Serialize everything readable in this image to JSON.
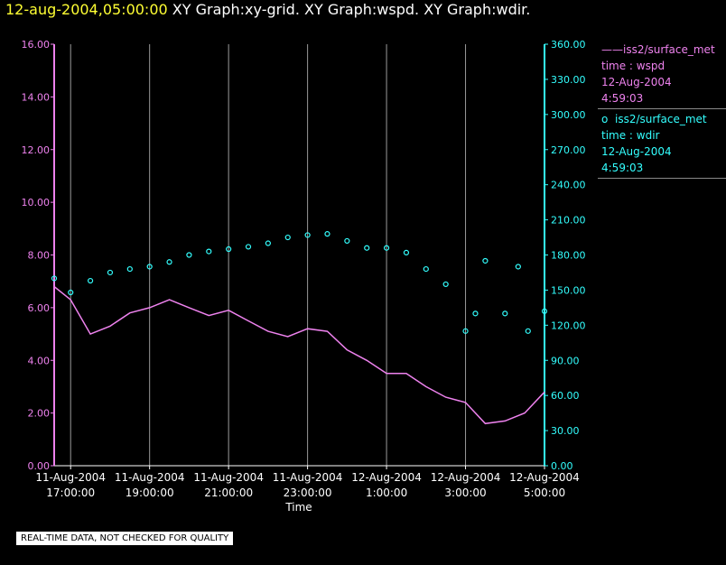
{
  "header": {
    "date": "12-aug-2004,05:00:00",
    "titles": "XY Graph:xy-grid.  XY Graph:wspd.  XY Graph:wdir."
  },
  "legend": [
    {
      "marker": "——",
      "series": "iss2/surface_met",
      "line1": "time : wspd",
      "line2": "12-Aug-2004",
      "line3": "4:59:03",
      "color": "#ee82ee"
    },
    {
      "marker": "o",
      "series": "iss2/surface_met",
      "line1": "time : wdir",
      "line2": "12-Aug-2004",
      "line3": "4:59:03",
      "color": "#33ffff"
    }
  ],
  "footer": {
    "quality_note": "REAL-TIME DATA, NOT CHECKED FOR QUALITY"
  },
  "chart_data": {
    "type": "line",
    "title": "",
    "xlabel": "Time",
    "x_range": [
      "11-Aug-2004 16:35",
      "12-Aug-2004 05:00"
    ],
    "x_ticks": [
      {
        "t": "11-Aug-2004 17:00",
        "l1": "11-Aug-2004",
        "l2": "17:00:00"
      },
      {
        "t": "11-Aug-2004 19:00",
        "l1": "11-Aug-2004",
        "l2": "19:00:00"
      },
      {
        "t": "11-Aug-2004 21:00",
        "l1": "11-Aug-2004",
        "l2": "21:00:00"
      },
      {
        "t": "11-Aug-2004 23:00",
        "l1": "11-Aug-2004",
        "l2": "23:00:00"
      },
      {
        "t": "12-Aug-2004 01:00",
        "l1": "12-Aug-2004",
        "l2": "1:00:00"
      },
      {
        "t": "12-Aug-2004 03:00",
        "l1": "12-Aug-2004",
        "l2": "3:00:00"
      },
      {
        "t": "12-Aug-2004 05:00",
        "l1": "12-Aug-2004",
        "l2": "5:00:00"
      }
    ],
    "y_left": {
      "range": [
        0,
        16
      ],
      "ticks": [
        "0.00",
        "2.00",
        "4.00",
        "6.00",
        "8.00",
        "10.00",
        "12.00",
        "14.00",
        "16.00"
      ],
      "color": "#ee82ee"
    },
    "y_right": {
      "range": [
        0,
        360
      ],
      "ticks": [
        "0.00",
        "30.00",
        "60.00",
        "90.00",
        "120.00",
        "150.00",
        "180.00",
        "210.00",
        "240.00",
        "270.00",
        "300.00",
        "330.00",
        "360.00"
      ],
      "color": "#33ffff"
    },
    "grid": "vertical lines at x ticks",
    "series": [
      {
        "name": "iss2/surface_met time : wspd",
        "axis": "left",
        "style": "line",
        "color": "#ee82ee",
        "points": [
          [
            "11-Aug-2004 16:35",
            6.8
          ],
          [
            "11-Aug-2004 17:00",
            6.3
          ],
          [
            "11-Aug-2004 17:30",
            5.0
          ],
          [
            "11-Aug-2004 18:00",
            5.3
          ],
          [
            "11-Aug-2004 18:30",
            5.8
          ],
          [
            "11-Aug-2004 19:00",
            6.0
          ],
          [
            "11-Aug-2004 19:30",
            6.3
          ],
          [
            "11-Aug-2004 20:00",
            6.0
          ],
          [
            "11-Aug-2004 20:30",
            5.7
          ],
          [
            "11-Aug-2004 21:00",
            5.9
          ],
          [
            "11-Aug-2004 21:30",
            5.5
          ],
          [
            "11-Aug-2004 22:00",
            5.1
          ],
          [
            "11-Aug-2004 22:30",
            4.9
          ],
          [
            "11-Aug-2004 23:00",
            5.2
          ],
          [
            "11-Aug-2004 23:30",
            5.1
          ],
          [
            "12-Aug-2004 00:00",
            4.4
          ],
          [
            "12-Aug-2004 00:30",
            4.0
          ],
          [
            "12-Aug-2004 01:00",
            3.5
          ],
          [
            "12-Aug-2004 01:30",
            3.5
          ],
          [
            "12-Aug-2004 02:00",
            3.0
          ],
          [
            "12-Aug-2004 02:30",
            2.6
          ],
          [
            "12-Aug-2004 03:00",
            2.4
          ],
          [
            "12-Aug-2004 03:30",
            1.6
          ],
          [
            "12-Aug-2004 04:00",
            1.7
          ],
          [
            "12-Aug-2004 04:30",
            2.0
          ],
          [
            "12-Aug-2004 05:00",
            2.8
          ]
        ]
      },
      {
        "name": "iss2/surface_met time : wdir",
        "axis": "right",
        "style": "scatter",
        "color": "#33ffff",
        "points": [
          [
            "11-Aug-2004 16:35",
            160
          ],
          [
            "11-Aug-2004 17:00",
            148
          ],
          [
            "11-Aug-2004 17:30",
            158
          ],
          [
            "11-Aug-2004 18:00",
            165
          ],
          [
            "11-Aug-2004 18:30",
            168
          ],
          [
            "11-Aug-2004 19:00",
            170
          ],
          [
            "11-Aug-2004 19:30",
            174
          ],
          [
            "11-Aug-2004 20:00",
            180
          ],
          [
            "11-Aug-2004 20:30",
            183
          ],
          [
            "11-Aug-2004 21:00",
            185
          ],
          [
            "11-Aug-2004 21:30",
            187
          ],
          [
            "11-Aug-2004 22:00",
            190
          ],
          [
            "11-Aug-2004 22:30",
            195
          ],
          [
            "11-Aug-2004 23:00",
            197
          ],
          [
            "11-Aug-2004 23:30",
            198
          ],
          [
            "12-Aug-2004 00:00",
            192
          ],
          [
            "12-Aug-2004 00:30",
            186
          ],
          [
            "12-Aug-2004 01:00",
            186
          ],
          [
            "12-Aug-2004 01:30",
            182
          ],
          [
            "12-Aug-2004 02:00",
            168
          ],
          [
            "12-Aug-2004 02:30",
            155
          ],
          [
            "12-Aug-2004 03:00",
            115
          ],
          [
            "12-Aug-2004 03:15",
            130
          ],
          [
            "12-Aug-2004 03:30",
            175
          ],
          [
            "12-Aug-2004 04:00",
            130
          ],
          [
            "12-Aug-2004 04:20",
            170
          ],
          [
            "12-Aug-2004 04:35",
            115
          ],
          [
            "12-Aug-2004 05:00",
            132
          ]
        ]
      }
    ]
  }
}
